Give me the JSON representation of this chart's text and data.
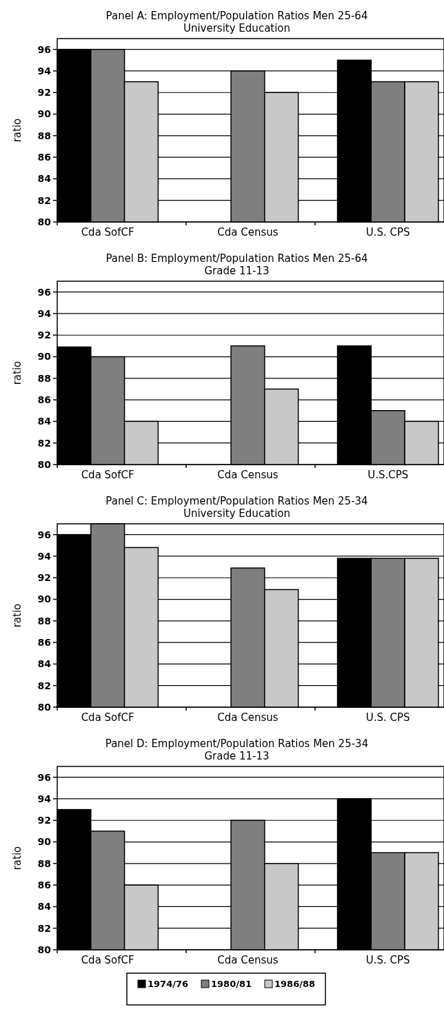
{
  "chart_data": [
    {
      "type": "bar",
      "title": "Panel A: Employment/Population Ratios Men 25-64",
      "subtitle": "University Education",
      "ylabel": "ratio",
      "categories": [
        "Cda SofCF",
        "Cda Census",
        "U.S. CPS"
      ],
      "ylim": [
        80,
        97
      ],
      "yticks": [
        80,
        82,
        84,
        86,
        88,
        90,
        92,
        94,
        96
      ],
      "grid": "y",
      "legend": false,
      "series": [
        {
          "color": "#000000",
          "values": [
            96,
            null,
            95
          ]
        },
        {
          "color": "#7f7f7f",
          "values": [
            96,
            94,
            93
          ]
        },
        {
          "color": "#c8c8c8",
          "values": [
            93,
            92,
            93
          ]
        }
      ]
    },
    {
      "type": "bar",
      "title": "Panel B: Employment/Population Ratios Men 25-64",
      "subtitle": "Grade 11-13",
      "ylabel": "ratio",
      "categories": [
        "Cda SofCF",
        "Cda Census",
        "U.S.CPS"
      ],
      "ylim": [
        80,
        97
      ],
      "yticks": [
        80,
        82,
        84,
        86,
        88,
        90,
        92,
        94,
        96
      ],
      "grid": "y",
      "legend": false,
      "series": [
        {
          "color": "#000000",
          "values": [
            90.9,
            null,
            91
          ]
        },
        {
          "color": "#7f7f7f",
          "values": [
            90,
            91,
            85
          ]
        },
        {
          "color": "#c8c8c8",
          "values": [
            84,
            87,
            84
          ]
        }
      ]
    },
    {
      "type": "bar",
      "title": "Panel C: Employment/Population Ratios Men 25-34",
      "subtitle": "University Education",
      "ylabel": "ratio",
      "categories": [
        "Cda SofCF",
        "Cda Census",
        "U.S. CPS"
      ],
      "ylim": [
        80,
        97
      ],
      "yticks": [
        80,
        82,
        84,
        86,
        88,
        90,
        92,
        94,
        96
      ],
      "grid": "y",
      "legend": false,
      "series": [
        {
          "color": "#000000",
          "values": [
            96,
            null,
            93.8
          ]
        },
        {
          "color": "#7f7f7f",
          "values": [
            97,
            92.9,
            93.8
          ]
        },
        {
          "color": "#c8c8c8",
          "values": [
            94.8,
            90.9,
            93.8
          ]
        }
      ]
    },
    {
      "type": "bar",
      "title": "Panel D: Employment/Population Ratios Men 25-34",
      "subtitle": "Grade 11-13",
      "ylabel": "ratio",
      "categories": [
        "Cda SofCF",
        "Cda Census",
        "U.S. CPS"
      ],
      "ylim": [
        80,
        97
      ],
      "yticks": [
        80,
        82,
        84,
        86,
        88,
        90,
        92,
        94,
        96
      ],
      "grid": "y",
      "legend": "bottom",
      "series": [
        {
          "name": "1974/76",
          "color": "#000000",
          "values": [
            93,
            null,
            94
          ]
        },
        {
          "name": "1980/81",
          "color": "#7f7f7f",
          "values": [
            91,
            92,
            89
          ]
        },
        {
          "name": "1986/88",
          "color": "#c8c8c8",
          "values": [
            86,
            88,
            89
          ]
        }
      ]
    }
  ]
}
